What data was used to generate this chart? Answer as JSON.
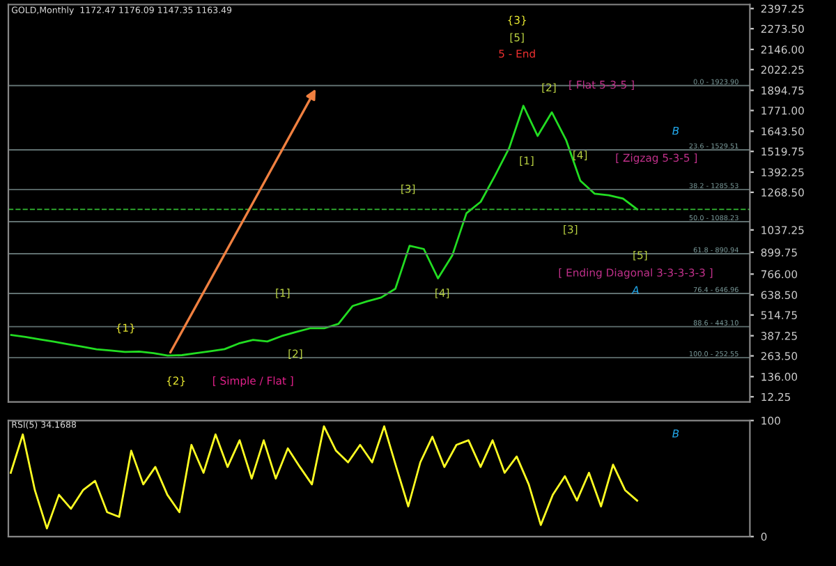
{
  "chart_data": [
    {
      "type": "line",
      "title": "GOLD,Monthly  1172.47 1176.09 1147.35 1163.49",
      "categories": [
        null,
        null,
        null,
        null,
        null,
        null,
        null,
        null,
        null,
        null,
        null,
        null,
        null,
        null,
        null,
        null,
        null,
        null,
        null,
        null,
        null,
        null,
        null,
        null,
        null,
        null,
        null,
        null,
        null,
        null,
        null,
        null,
        null,
        null,
        null,
        null,
        null,
        null,
        null,
        null,
        null,
        null,
        null,
        null,
        null
      ],
      "series": [
        {
          "color": "#22dd22",
          "values": [
            392,
            380,
            365,
            351,
            335,
            320,
            304,
            296,
            288,
            290,
            280,
            265,
            268,
            280,
            292,
            305,
            340,
            362,
            352,
            385,
            410,
            433,
            433,
            460,
            570,
            598,
            622,
            676,
            940,
            920,
            740,
            880,
            1140,
            1210,
            1370,
            1540,
            1800,
            1615,
            1760,
            1590,
            1340,
            1260,
            1250,
            1230,
            1164
          ]
        }
      ],
      "ylim": [
        -19,
        2422
      ],
      "yticks": [
        {
          "value": 12.25,
          "label": "12.25"
        },
        {
          "value": 136,
          "label": "136.00"
        },
        {
          "value": 263.5,
          "label": "263.50"
        },
        {
          "value": 387.25,
          "label": "387.25"
        },
        {
          "value": 514.75,
          "label": "514.75"
        },
        {
          "value": 638.5,
          "label": "638.50"
        },
        {
          "value": 766,
          "label": "766.00"
        },
        {
          "value": 899.75,
          "label": "899.75"
        },
        {
          "value": 1037.25,
          "label": "1037.25"
        },
        {
          "value": 1268.5,
          "label": "1268.50"
        },
        {
          "value": 1392.25,
          "label": "1392.25"
        },
        {
          "value": 1519.75,
          "label": "1519.75"
        },
        {
          "value": 1643.5,
          "label": "1643.50"
        },
        {
          "value": 1771,
          "label": "1771.00"
        },
        {
          "value": 1894.75,
          "label": "1894.75"
        },
        {
          "value": 2022.25,
          "label": "2022.25"
        },
        {
          "value": 2146,
          "label": "2146.00"
        },
        {
          "value": 2273.5,
          "label": "2273.50"
        },
        {
          "value": 2397.25,
          "label": "2397.25"
        }
      ],
      "tick_labels": "y",
      "ref_lines": [
        {
          "axis": "y",
          "value": 1923.9,
          "color": "#607070"
        },
        {
          "axis": "y",
          "value": 1529.51,
          "color": "#607070"
        },
        {
          "axis": "y",
          "value": 1285.53,
          "color": "#607070"
        },
        {
          "axis": "y",
          "value": 1088.23,
          "color": "#607070"
        },
        {
          "axis": "y",
          "value": 890.94,
          "color": "#607070"
        },
        {
          "axis": "y",
          "value": 646.96,
          "color": "#607070"
        },
        {
          "axis": "y",
          "value": 443.1,
          "color": "#607070"
        },
        {
          "axis": "y",
          "value": 252.55,
          "color": "#607070"
        },
        {
          "axis": "y",
          "value": 1163.49,
          "color": "#33bb33",
          "line_style": "dashed"
        }
      ],
      "annotations": [
        "{1}",
        "{2}",
        "[ Simple / Flat ]",
        "[1]",
        "[2]",
        "[3]",
        "[4]",
        "{3}",
        "[5]",
        "5 - End",
        "[2]",
        "[ Flat 5-3-5 ]",
        "[1]",
        "[4]",
        "[ Zigzag 5-3-5 ]",
        "[3]",
        "[5]",
        "[ Ending Diagonal 3-3-3-3-3 ]",
        "A",
        "B",
        {
          "text": "0.0 - 1923.90",
          "y": 1923.9
        },
        {
          "text": "23.6 - 1529.51",
          "y": 1529.51
        },
        {
          "text": "38.2 - 1285.53",
          "y": 1285.53
        },
        {
          "text": "50.0 - 1088.23",
          "y": 1088.23
        },
        {
          "text": "61.8 - 890.94",
          "y": 890.94
        },
        {
          "text": "76.4 - 646.96",
          "y": 646.96
        },
        {
          "text": "88.6 - 443.10",
          "y": 443.1
        },
        {
          "text": "100.0 - 252.55",
          "y": 252.55
        }
      ]
    },
    {
      "type": "line",
      "title": "RSI(5) 34.1688",
      "categories": [
        null,
        null,
        null,
        null,
        null,
        null,
        null,
        null,
        null,
        null,
        null,
        null,
        null,
        null,
        null,
        null,
        null,
        null,
        null,
        null,
        null,
        null,
        null,
        null,
        null,
        null,
        null,
        null,
        null,
        null,
        null,
        null,
        null,
        null,
        null,
        null,
        null,
        null,
        null,
        null,
        null,
        null,
        null,
        null,
        null,
        null,
        null,
        null,
        null,
        null,
        null,
        null,
        null
      ],
      "series": [
        {
          "color": "#ffff22",
          "values": [
            55,
            88,
            40,
            7,
            36,
            24,
            40,
            48,
            21,
            17,
            74,
            45,
            60,
            36,
            21,
            79,
            55,
            88,
            60,
            83,
            50,
            83,
            50,
            76,
            60,
            45,
            95,
            74,
            64,
            79,
            64,
            95,
            60,
            26,
            64,
            86,
            60,
            79,
            83,
            60,
            83,
            55,
            69,
            45,
            10,
            36,
            52,
            31,
            55,
            26,
            62,
            40,
            31
          ]
        }
      ],
      "ylim": [
        0,
        100
      ],
      "yticks": [
        {
          "value": 0,
          "label": "0"
        },
        {
          "value": 100,
          "label": "100"
        }
      ],
      "tick_labels": "y",
      "annotations": [
        "B"
      ]
    }
  ]
}
